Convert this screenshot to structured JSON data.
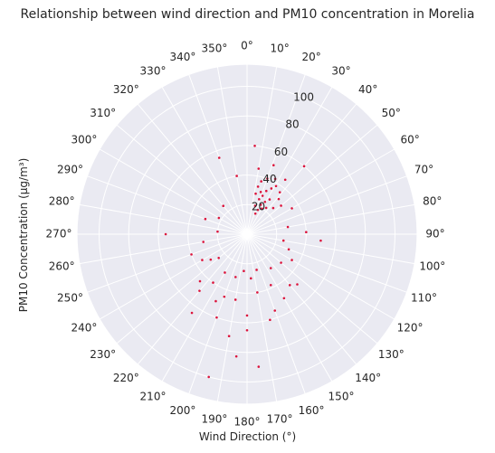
{
  "chart_data": {
    "type": "scatter",
    "projection": "polar",
    "title": "Relationship between wind direction and PM10 concentration in Morelia",
    "xlabel": "Wind Direction (°)",
    "ylabel": "PM10 Concentration (μg/m³)",
    "theta_direction": "clockwise",
    "theta_zero": "north",
    "theta_ticks": [
      "0°",
      "10°",
      "20°",
      "30°",
      "40°",
      "50°",
      "60°",
      "70°",
      "80°",
      "90°",
      "100°",
      "110°",
      "120°",
      "130°",
      "140°",
      "150°",
      "160°",
      "170°",
      "180°",
      "190°",
      "200°",
      "210°",
      "220°",
      "230°",
      "240°",
      "250°",
      "260°",
      "270°",
      "280°",
      "290°",
      "300°",
      "310°",
      "320°",
      "330°",
      "340°",
      "350°"
    ],
    "r_ticks": [
      "20",
      "40",
      "60",
      "80",
      "100"
    ],
    "r_tick_values": [
      20,
      40,
      60,
      80,
      100
    ],
    "rlim": [
      0,
      115
    ],
    "r_label_angle": 22.5,
    "grid": true,
    "marker_color": "#dc143c",
    "background": "#eaeaf2",
    "series": [
      {
        "points": [
          [
            22,
            28
          ],
          [
            24,
            32
          ],
          [
            19,
            25
          ],
          [
            28,
            35
          ],
          [
            35,
            45
          ],
          [
            22,
            15
          ],
          [
            15,
            37
          ],
          [
            30,
            20
          ],
          [
            40,
            60
          ],
          [
            10,
            45
          ],
          [
            50,
            30
          ],
          [
            25,
            22
          ],
          [
            20,
            40
          ],
          [
            45,
            25
          ],
          [
            18,
            30
          ],
          [
            33,
            28
          ],
          [
            27,
            42
          ],
          [
            12,
            28
          ],
          [
            38,
            36
          ],
          [
            16,
            20
          ],
          [
            29,
            25
          ],
          [
            21,
            50
          ],
          [
            13,
            33
          ],
          [
            36,
            22
          ],
          [
            24,
            18
          ],
          [
            42,
            32
          ],
          [
            31,
            38
          ],
          [
            340,
            55
          ],
          [
            290,
            30
          ],
          [
            300,
            22
          ],
          [
            320,
            25
          ],
          [
            5,
            60
          ],
          [
            350,
            40
          ],
          [
            60,
            35
          ],
          [
            80,
            28
          ],
          [
            95,
            50
          ],
          [
            88,
            40
          ],
          [
            100,
            25
          ],
          [
            110,
            30
          ],
          [
            260,
            30
          ],
          [
            270,
            55
          ],
          [
            250,
            40
          ],
          [
            240,
            35
          ],
          [
            230,
            25
          ],
          [
            275,
            20
          ],
          [
            175,
            90
          ],
          [
            195,
            100
          ],
          [
            185,
            83
          ],
          [
            200,
            60
          ],
          [
            160,
            55
          ],
          [
            150,
            50
          ],
          [
            140,
            45
          ],
          [
            130,
            30
          ],
          [
            120,
            35
          ],
          [
            220,
            50
          ],
          [
            215,
            40
          ],
          [
            210,
            30
          ],
          [
            190,
            45
          ],
          [
            170,
            40
          ],
          [
            180,
            55
          ],
          [
            165,
            25
          ],
          [
            205,
            50
          ],
          [
            155,
            38
          ],
          [
            145,
            28
          ],
          [
            135,
            48
          ],
          [
            225,
            45
          ],
          [
            235,
            30
          ],
          [
            195,
            30
          ],
          [
            185,
            25
          ],
          [
            175,
            30
          ],
          [
            215,
            65
          ],
          [
            190,
            70
          ],
          [
            180,
            65
          ],
          [
            200,
            45
          ],
          [
            165,
            60
          ]
        ]
      }
    ]
  }
}
